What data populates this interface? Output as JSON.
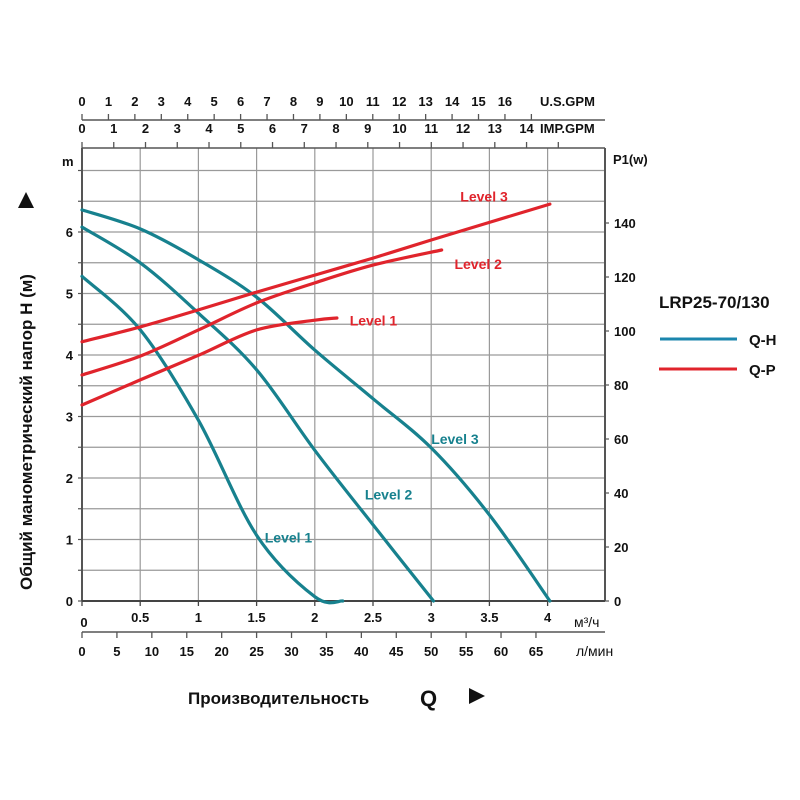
{
  "chart_data": {
    "type": "line",
    "title": "LRP25-70/130",
    "xlabel": "Производительность Q",
    "ylabel": "Общий манометрический напор H (м)",
    "y_unit": "m",
    "y2label": "P1(w)",
    "xlim": [
      0,
      4.5
    ],
    "ylim": [
      0,
      7.4
    ],
    "y2lim": [
      0,
      167.5
    ],
    "grid": true,
    "legend_position": "right",
    "axes": {
      "x_m3h": {
        "unit": "м³/ч",
        "ticks": [
          0,
          0.5,
          1,
          1.5,
          2,
          2.5,
          3,
          3.5,
          4
        ],
        "tick_labels": [
          "0",
          "0.5",
          "1",
          "1.5",
          "2",
          "2.5",
          "3",
          "3.5",
          "4"
        ]
      },
      "x_lmin": {
        "unit": "л/мин",
        "ticks": [
          0,
          5,
          10,
          15,
          20,
          25,
          30,
          35,
          40,
          45,
          50,
          55,
          60,
          65
        ],
        "tick_labels": [
          "0",
          "5",
          "10",
          "15",
          "20",
          "25",
          "30",
          "35",
          "40",
          "45",
          "50",
          "55",
          "60",
          "65"
        ]
      },
      "x_usgpm": {
        "unit": "U.S.GPM",
        "ticks": [
          0,
          1,
          2,
          3,
          4,
          5,
          6,
          7,
          8,
          9,
          10,
          11,
          12,
          13,
          14,
          15,
          16,
          17
        ],
        "tick_labels": [
          "0",
          "1",
          "2",
          "3",
          "4",
          "5",
          "6",
          "7",
          "8",
          "9",
          "10",
          "11",
          "12",
          "13",
          "14",
          "15",
          "16",
          ""
        ]
      },
      "x_impgpm": {
        "unit": "IMP.GPM",
        "ticks": [
          0,
          1,
          2,
          3,
          4,
          5,
          6,
          7,
          8,
          9,
          10,
          11,
          12,
          13,
          14,
          15
        ],
        "tick_labels": [
          "0",
          "1",
          "2",
          "3",
          "4",
          "5",
          "6",
          "7",
          "8",
          "9",
          "10",
          "11",
          "12",
          "13",
          "14",
          ""
        ]
      },
      "y_head": {
        "unit": "m",
        "ticks": [
          0,
          1,
          2,
          3,
          4,
          5,
          6
        ],
        "tick_labels": [
          "0",
          "1",
          "2",
          "3",
          "4",
          "5",
          "6"
        ]
      },
      "y_power": {
        "unit": "P1(w)",
        "ticks": [
          0,
          20,
          40,
          60,
          80,
          100,
          120,
          140
        ],
        "tick_labels": [
          "0",
          "20",
          "40",
          "60",
          "80",
          "100",
          "120",
          "140"
        ]
      }
    },
    "legend": [
      {
        "label": "Q-H",
        "color": "#1b86ad"
      },
      {
        "label": "Q-P",
        "color": "#e0242c"
      }
    ],
    "series": [
      {
        "name": "Q-H Level 1",
        "group": "Q-H",
        "label": "Level 1",
        "axis": "head",
        "color": "#17818e",
        "x": [
          0,
          0.5,
          1.0,
          1.5,
          2.0,
          2.24
        ],
        "y": [
          5.28,
          4.41,
          2.94,
          1.07,
          0.07,
          0
        ]
      },
      {
        "name": "Q-H Level 2",
        "group": "Q-H",
        "label": "Level 2",
        "axis": "head",
        "color": "#17818e",
        "x": [
          0,
          0.5,
          1.0,
          1.5,
          2.0,
          2.5,
          3.02
        ],
        "y": [
          6.08,
          5.5,
          4.68,
          3.76,
          2.45,
          1.24,
          0
        ]
      },
      {
        "name": "Q-H Level 3",
        "group": "Q-H",
        "label": "Level 3",
        "axis": "head",
        "color": "#17818e",
        "x": [
          0,
          0.5,
          1.0,
          1.5,
          2.0,
          2.5,
          3.0,
          3.5,
          4.02
        ],
        "y": [
          6.36,
          6.05,
          5.55,
          4.94,
          4.08,
          3.29,
          2.49,
          1.4,
          0
        ]
      },
      {
        "name": "Q-P Level 1",
        "group": "Q-P",
        "label": "Level 1",
        "axis": "power",
        "color": "#e0242c",
        "x": [
          0,
          0.5,
          1.0,
          1.5,
          2.0,
          2.19
        ],
        "y": [
          72.6,
          81.9,
          91,
          100.4,
          104,
          104.8
        ]
      },
      {
        "name": "Q-P Level 2",
        "group": "Q-P",
        "label": "Level 2",
        "axis": "power",
        "color": "#e0242c",
        "x": [
          0,
          0.5,
          1.0,
          1.5,
          2.0,
          2.5,
          3.09
        ],
        "y": [
          83.7,
          90.7,
          100.4,
          110.4,
          117.8,
          124.4,
          130
        ]
      },
      {
        "name": "Q-P Level 3",
        "group": "Q-P",
        "label": "Level 3",
        "axis": "power",
        "color": "#e0242c",
        "x": [
          0,
          0.5,
          1.0,
          1.5,
          2.0,
          2.5,
          3.0,
          4.02
        ],
        "y": [
          96,
          101.5,
          107.8,
          114.4,
          120.7,
          127,
          133.7,
          147
        ]
      }
    ]
  }
}
